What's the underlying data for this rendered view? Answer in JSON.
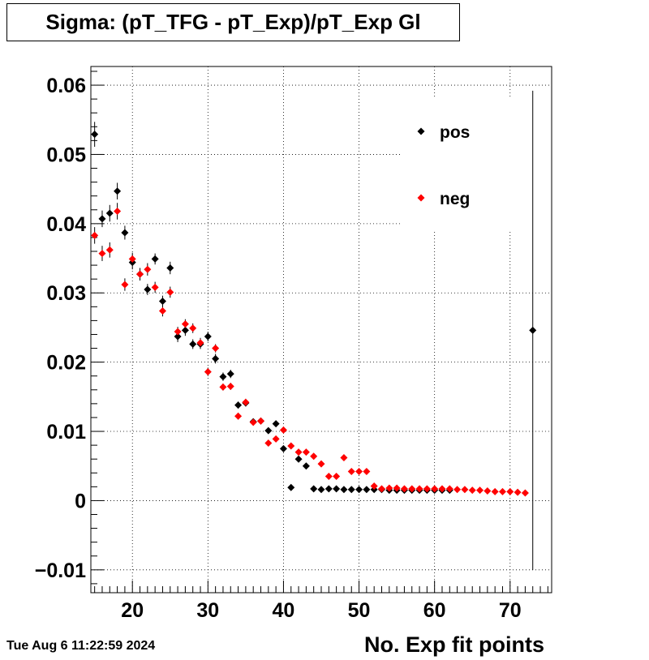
{
  "title": "Sigma: (pT_TFG - pT_Exp)/pT_Exp Gl",
  "timestamp": "Tue Aug  6 11:22:59 2024",
  "chart_data": {
    "type": "scatter",
    "xlabel": "No. Exp fit points",
    "ylabel": "",
    "xlim": [
      14.5,
      75.5
    ],
    "ylim": [
      -0.0133,
      0.0627
    ],
    "grid": true,
    "legend_position": "top-right",
    "x_ticks": [
      20,
      30,
      40,
      50,
      60,
      70
    ],
    "x_tick_labels": [
      "20",
      "30",
      "40",
      "50",
      "60",
      "70"
    ],
    "y_ticks": [
      -0.01,
      0,
      0.01,
      0.02,
      0.03,
      0.04,
      0.05,
      0.06
    ],
    "y_tick_labels": [
      "−0.01",
      "0",
      "0.01",
      "0.02",
      "0.03",
      "0.04",
      "0.05",
      "0.06"
    ],
    "series": [
      {
        "name": "pos",
        "color": "#000000",
        "points": [
          [
            15,
            0.0529,
            0.0018
          ],
          [
            16,
            0.0407,
            0.0012
          ],
          [
            17,
            0.0415,
            0.0012
          ],
          [
            18,
            0.0447,
            0.0012
          ],
          [
            19,
            0.0387,
            0.001
          ],
          [
            20,
            0.0344,
            0.001
          ],
          [
            21,
            0.0327,
            0.0009
          ],
          [
            22,
            0.0305,
            0.0008
          ],
          [
            23,
            0.0349,
            0.0008
          ],
          [
            24,
            0.0288,
            0.0008
          ],
          [
            25,
            0.0336,
            0.0009
          ],
          [
            26,
            0.0237,
            0.0008
          ],
          [
            27,
            0.0246,
            0.0008
          ],
          [
            28,
            0.0226,
            0.0007
          ],
          [
            29,
            0.0226,
            0.0007
          ],
          [
            30,
            0.0237,
            0.0007
          ],
          [
            31,
            0.0205,
            0.0007
          ],
          [
            32,
            0.0179,
            0.0006
          ],
          [
            33,
            0.0183,
            0.0006
          ],
          [
            34,
            0.0138,
            0.0005
          ],
          [
            35,
            0.0141,
            0.0005
          ],
          [
            36,
            0.0114,
            0.0004
          ],
          [
            37,
            0.0115,
            0.0004
          ],
          [
            38,
            0.0101,
            0.0004
          ],
          [
            39,
            0.0111,
            0.0004
          ],
          [
            40,
            0.0075,
            0.0003
          ],
          [
            41,
            0.0019,
            0.0002
          ],
          [
            42,
            0.006,
            0.0003
          ],
          [
            43,
            0.005,
            0.0002
          ],
          [
            44,
            0.0017,
            0.0001
          ],
          [
            45,
            0.0016,
            0.0001
          ],
          [
            46,
            0.0017,
            0.0001
          ],
          [
            47,
            0.0017,
            0.0001
          ],
          [
            48,
            0.0016,
            0.0001
          ],
          [
            49,
            0.0016,
            0.0001
          ],
          [
            50,
            0.0016,
            0.0001
          ],
          [
            51,
            0.0016,
            0.0001
          ],
          [
            52,
            0.0016,
            0.0001
          ],
          [
            53,
            0.0016,
            0.0001
          ],
          [
            54,
            0.0015,
            0.0001
          ],
          [
            55,
            0.0015,
            0.0001
          ],
          [
            56,
            0.0015,
            0.0001
          ],
          [
            57,
            0.0015,
            0.0001
          ],
          [
            58,
            0.0015,
            0.0001
          ],
          [
            59,
            0.0015,
            0.0001
          ],
          [
            60,
            0.0015,
            0.0001
          ],
          [
            61,
            0.0015,
            0.0001
          ],
          [
            62,
            0.0015,
            0.0001
          ],
          [
            73,
            0.0246,
            0.0346
          ]
        ]
      },
      {
        "name": "neg",
        "color": "#ff0000",
        "points": [
          [
            15,
            0.0383,
            0.0012
          ],
          [
            16,
            0.0357,
            0.0011
          ],
          [
            17,
            0.0362,
            0.0011
          ],
          [
            18,
            0.0418,
            0.0012
          ],
          [
            19,
            0.0312,
            0.0009
          ],
          [
            20,
            0.0349,
            0.0009
          ],
          [
            21,
            0.0327,
            0.0009
          ],
          [
            22,
            0.0334,
            0.0009
          ],
          [
            23,
            0.0308,
            0.0008
          ],
          [
            24,
            0.0274,
            0.0008
          ],
          [
            25,
            0.0301,
            0.0008
          ],
          [
            26,
            0.0244,
            0.0007
          ],
          [
            27,
            0.0255,
            0.0007
          ],
          [
            28,
            0.0249,
            0.0007
          ],
          [
            29,
            0.0228,
            0.0007
          ],
          [
            30,
            0.0186,
            0.0006
          ],
          [
            31,
            0.022,
            0.0006
          ],
          [
            32,
            0.0164,
            0.0005
          ],
          [
            33,
            0.0165,
            0.0005
          ],
          [
            34,
            0.0122,
            0.0005
          ],
          [
            35,
            0.0142,
            0.0005
          ],
          [
            36,
            0.0113,
            0.0004
          ],
          [
            37,
            0.0115,
            0.0004
          ],
          [
            38,
            0.0083,
            0.0003
          ],
          [
            39,
            0.0089,
            0.0003
          ],
          [
            40,
            0.0102,
            0.0004
          ],
          [
            41,
            0.0079,
            0.0003
          ],
          [
            42,
            0.007,
            0.0003
          ],
          [
            43,
            0.007,
            0.0003
          ],
          [
            44,
            0.0064,
            0.0003
          ],
          [
            45,
            0.0053,
            0.0002
          ],
          [
            46,
            0.0035,
            0.0002
          ],
          [
            47,
            0.0035,
            0.0002
          ],
          [
            48,
            0.0062,
            0.0002
          ],
          [
            49,
            0.0042,
            0.0002
          ],
          [
            50,
            0.0042,
            0.0002
          ],
          [
            51,
            0.0042,
            0.0002
          ],
          [
            52,
            0.0021,
            0.0001
          ],
          [
            53,
            0.0017,
            0.0001
          ],
          [
            54,
            0.0018,
            0.0001
          ],
          [
            55,
            0.0018,
            0.0001
          ],
          [
            56,
            0.0017,
            0.0001
          ],
          [
            57,
            0.0017,
            0.0001
          ],
          [
            58,
            0.0017,
            0.0001
          ],
          [
            59,
            0.0017,
            0.0001
          ],
          [
            60,
            0.0017,
            0.0001
          ],
          [
            61,
            0.0017,
            0.0001
          ],
          [
            62,
            0.0017,
            0.0001
          ],
          [
            63,
            0.0016,
            0.0001
          ],
          [
            64,
            0.0016,
            0.0001
          ],
          [
            65,
            0.0015,
            0.0001
          ],
          [
            66,
            0.0015,
            0.0001
          ],
          [
            67,
            0.0014,
            0.0001
          ],
          [
            68,
            0.0013,
            0.0001
          ],
          [
            69,
            0.0013,
            0.0001
          ],
          [
            70,
            0.0013,
            0.0001
          ],
          [
            71,
            0.0012,
            0.0001
          ],
          [
            72,
            0.0011,
            0.0001
          ]
        ]
      }
    ]
  }
}
